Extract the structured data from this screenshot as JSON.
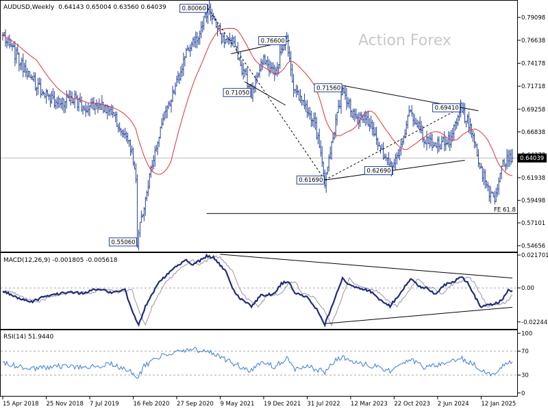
{
  "chart_data": [
    {
      "type": "candlestick",
      "panel": "price",
      "header": {
        "symbol": "AUDUSD,Weekly",
        "ohlc": "0.64143 0.65004 0.63560 0.64039"
      },
      "watermark": "Action Forex",
      "ylim": [
        0.5395,
        0.8095
      ],
      "y_ticks": [
        0.79098,
        0.76638,
        0.74178,
        0.71718,
        0.69258,
        0.66838,
        0.64378,
        0.61938,
        0.59498,
        0.57101,
        0.54656
      ],
      "y_tick_labels": [
        "0.79098",
        "0.76638",
        "0.74178",
        "0.71718",
        "0.69258",
        "0.66838",
        "0.64378",
        "0.61938",
        "0.59498",
        "0.57101",
        "0.54656"
      ],
      "last_price": 0.64039,
      "last_price_label": "0.64039",
      "sma_color": "#e03030",
      "bar_color": "#1f3f99",
      "price_anchors": [
        [
          0,
          0.775
        ],
        [
          12,
          0.745
        ],
        [
          25,
          0.718
        ],
        [
          40,
          0.698
        ],
        [
          52,
          0.705
        ],
        [
          60,
          0.692
        ],
        [
          70,
          0.7
        ],
        [
          80,
          0.688
        ],
        [
          93,
          0.66
        ],
        [
          98,
          0.62
        ],
        [
          99,
          0.5506
        ],
        [
          104,
          0.59
        ],
        [
          115,
          0.668
        ],
        [
          125,
          0.71
        ],
        [
          135,
          0.75
        ],
        [
          145,
          0.775
        ],
        [
          151,
          0.8006
        ],
        [
          160,
          0.77
        ],
        [
          170,
          0.765
        ],
        [
          176,
          0.735
        ],
        [
          183,
          0.7105
        ],
        [
          192,
          0.745
        ],
        [
          200,
          0.729
        ],
        [
          205,
          0.755
        ],
        [
          209,
          0.766
        ],
        [
          213,
          0.72
        ],
        [
          220,
          0.7
        ],
        [
          230,
          0.675
        ],
        [
          237,
          0.6169
        ],
        [
          245,
          0.68
        ],
        [
          250,
          0.7156
        ],
        [
          258,
          0.685
        ],
        [
          270,
          0.68
        ],
        [
          280,
          0.64
        ],
        [
          287,
          0.6269
        ],
        [
          300,
          0.69
        ],
        [
          310,
          0.66
        ],
        [
          320,
          0.655
        ],
        [
          330,
          0.66
        ],
        [
          337,
          0.6941
        ],
        [
          345,
          0.67
        ],
        [
          350,
          0.64
        ],
        [
          355,
          0.615
        ],
        [
          362,
          0.592
        ],
        [
          368,
          0.635
        ],
        [
          372,
          0.6404
        ]
      ],
      "annotations": [
        {
          "label": "0.80060",
          "bar": 151,
          "price": 0.8006,
          "side": "left"
        },
        {
          "label": "0.76600",
          "bar": 209,
          "price": 0.766,
          "side": "left"
        },
        {
          "label": "0.71050",
          "bar": 183,
          "price": 0.7105,
          "side": "left"
        },
        {
          "label": "0.71560",
          "bar": 250,
          "price": 0.7156,
          "side": "left"
        },
        {
          "label": "0.69410",
          "bar": 337,
          "price": 0.6941,
          "side": "left"
        },
        {
          "label": "0.62690",
          "bar": 287,
          "price": 0.6269,
          "side": "left"
        },
        {
          "label": "0.61690",
          "bar": 237,
          "price": 0.6169,
          "side": "left"
        },
        {
          "label": "0.55060",
          "bar": 99,
          "price": 0.5506,
          "side": "left"
        }
      ],
      "trendlines": [
        {
          "from": [
            168,
            0.752
          ],
          "to": [
            211,
            0.766
          ],
          "style": "solid"
        },
        {
          "from": [
            178,
            0.722
          ],
          "to": [
            208,
            0.697
          ],
          "style": "solid"
        },
        {
          "from": [
            250,
            0.718
          ],
          "to": [
            350,
            0.691
          ],
          "style": "solid"
        },
        {
          "from": [
            237,
            0.6169
          ],
          "to": [
            340,
            0.638
          ],
          "style": "solid"
        },
        {
          "from": [
            151,
            0.8006
          ],
          "to": [
            237,
            0.6169
          ],
          "style": "dashed"
        },
        {
          "from": [
            237,
            0.6169
          ],
          "to": [
            337,
            0.6941
          ],
          "style": "dashed"
        }
      ],
      "fe_level": {
        "price": 0.581,
        "label": "FE 61.8",
        "from_bar": 150
      }
    },
    {
      "type": "line",
      "panel": "macd",
      "label": "MACD(12,26,9) -0.001805 -0.005618",
      "ylim": [
        -0.0275,
        0.0235
      ],
      "y_ticks": [
        0.021701,
        0.0,
        -0.022445
      ],
      "y_tick_labels": [
        "0.021701",
        "0.00",
        "-0.022445"
      ],
      "macd_color": "#1f2a7a",
      "signal_color": "#9a8fae",
      "macd_anchors": [
        [
          0,
          -0.002
        ],
        [
          10,
          -0.006
        ],
        [
          20,
          -0.0095
        ],
        [
          30,
          -0.006
        ],
        [
          40,
          -0.004
        ],
        [
          50,
          -0.003
        ],
        [
          60,
          -0.0035
        ],
        [
          70,
          -0.0005
        ],
        [
          80,
          -0.003
        ],
        [
          90,
          -0.001
        ],
        [
          95,
          -0.015
        ],
        [
          100,
          -0.025
        ],
        [
          105,
          -0.012
        ],
        [
          115,
          0.004
        ],
        [
          125,
          0.012
        ],
        [
          135,
          0.019
        ],
        [
          140,
          0.015
        ],
        [
          150,
          0.021
        ],
        [
          155,
          0.02
        ],
        [
          165,
          0.01
        ],
        [
          170,
          -0.002
        ],
        [
          175,
          -0.007
        ],
        [
          183,
          -0.012
        ],
        [
          190,
          -0.005
        ],
        [
          200,
          -0.004
        ],
        [
          205,
          0.003
        ],
        [
          210,
          0.004
        ],
        [
          215,
          -0.003
        ],
        [
          225,
          -0.007
        ],
        [
          232,
          -0.015
        ],
        [
          237,
          -0.024
        ],
        [
          243,
          -0.01
        ],
        [
          250,
          0.007
        ],
        [
          255,
          0.002
        ],
        [
          262,
          0.0
        ],
        [
          270,
          -0.002
        ],
        [
          278,
          -0.008
        ],
        [
          285,
          -0.012
        ],
        [
          292,
          -0.004
        ],
        [
          300,
          0.006
        ],
        [
          306,
          0.001
        ],
        [
          312,
          0.0
        ],
        [
          318,
          -0.004
        ],
        [
          325,
          0.002
        ],
        [
          331,
          0.004
        ],
        [
          337,
          0.007
        ],
        [
          342,
          0.004
        ],
        [
          347,
          -0.005
        ],
        [
          352,
          -0.013
        ],
        [
          358,
          -0.011
        ],
        [
          364,
          -0.01
        ],
        [
          369,
          -0.006
        ],
        [
          372,
          -0.0018
        ]
      ],
      "signal_lag": 5,
      "trendlines": [
        {
          "from": [
            160,
            0.0222
          ],
          "to": [
            375,
            0.0065
          ]
        },
        {
          "from": [
            238,
            -0.0235
          ],
          "to": [
            375,
            -0.0128
          ]
        }
      ]
    },
    {
      "type": "line",
      "panel": "rsi",
      "label": "RSI(14) 51.9440",
      "ylim": [
        0,
        100
      ],
      "y_ticks": [
        100,
        70,
        30,
        0
      ],
      "y_tick_labels": [
        "100",
        "70",
        "30",
        "0"
      ],
      "ref_levels": [
        70,
        30
      ],
      "rsi_color": "#3a7bd5",
      "rsi_anchors": [
        [
          0,
          50
        ],
        [
          20,
          40
        ],
        [
          40,
          45
        ],
        [
          60,
          42
        ],
        [
          80,
          48
        ],
        [
          95,
          35
        ],
        [
          99,
          22
        ],
        [
          104,
          45
        ],
        [
          115,
          60
        ],
        [
          125,
          68
        ],
        [
          140,
          72
        ],
        [
          150,
          72
        ],
        [
          160,
          60
        ],
        [
          175,
          44
        ],
        [
          183,
          37
        ],
        [
          190,
          52
        ],
        [
          200,
          44
        ],
        [
          209,
          58
        ],
        [
          215,
          40
        ],
        [
          225,
          44
        ],
        [
          237,
          35
        ],
        [
          245,
          56
        ],
        [
          250,
          60
        ],
        [
          262,
          50
        ],
        [
          275,
          44
        ],
        [
          287,
          36
        ],
        [
          300,
          56
        ],
        [
          310,
          42
        ],
        [
          320,
          46
        ],
        [
          330,
          52
        ],
        [
          337,
          58
        ],
        [
          345,
          50
        ],
        [
          352,
          40
        ],
        [
          358,
          32
        ],
        [
          364,
          36
        ],
        [
          369,
          48
        ],
        [
          372,
          52
        ]
      ]
    }
  ],
  "x_axis": {
    "tick_labels": [
      "15 Apr 2018",
      "25 Nov 2018",
      "7 Jul 2019",
      "16 Feb 2020",
      "27 Sep 2020",
      "9 May 2021",
      "19 Dec 2021",
      "31 Jul 2022",
      "12 Mar 2023",
      "22 Oct 2023",
      "2 Jun 2024",
      "12 Jan 2025"
    ],
    "tick_bars": [
      0,
      32,
      64,
      96,
      128,
      160,
      192,
      224,
      256,
      288,
      320,
      352
    ]
  }
}
